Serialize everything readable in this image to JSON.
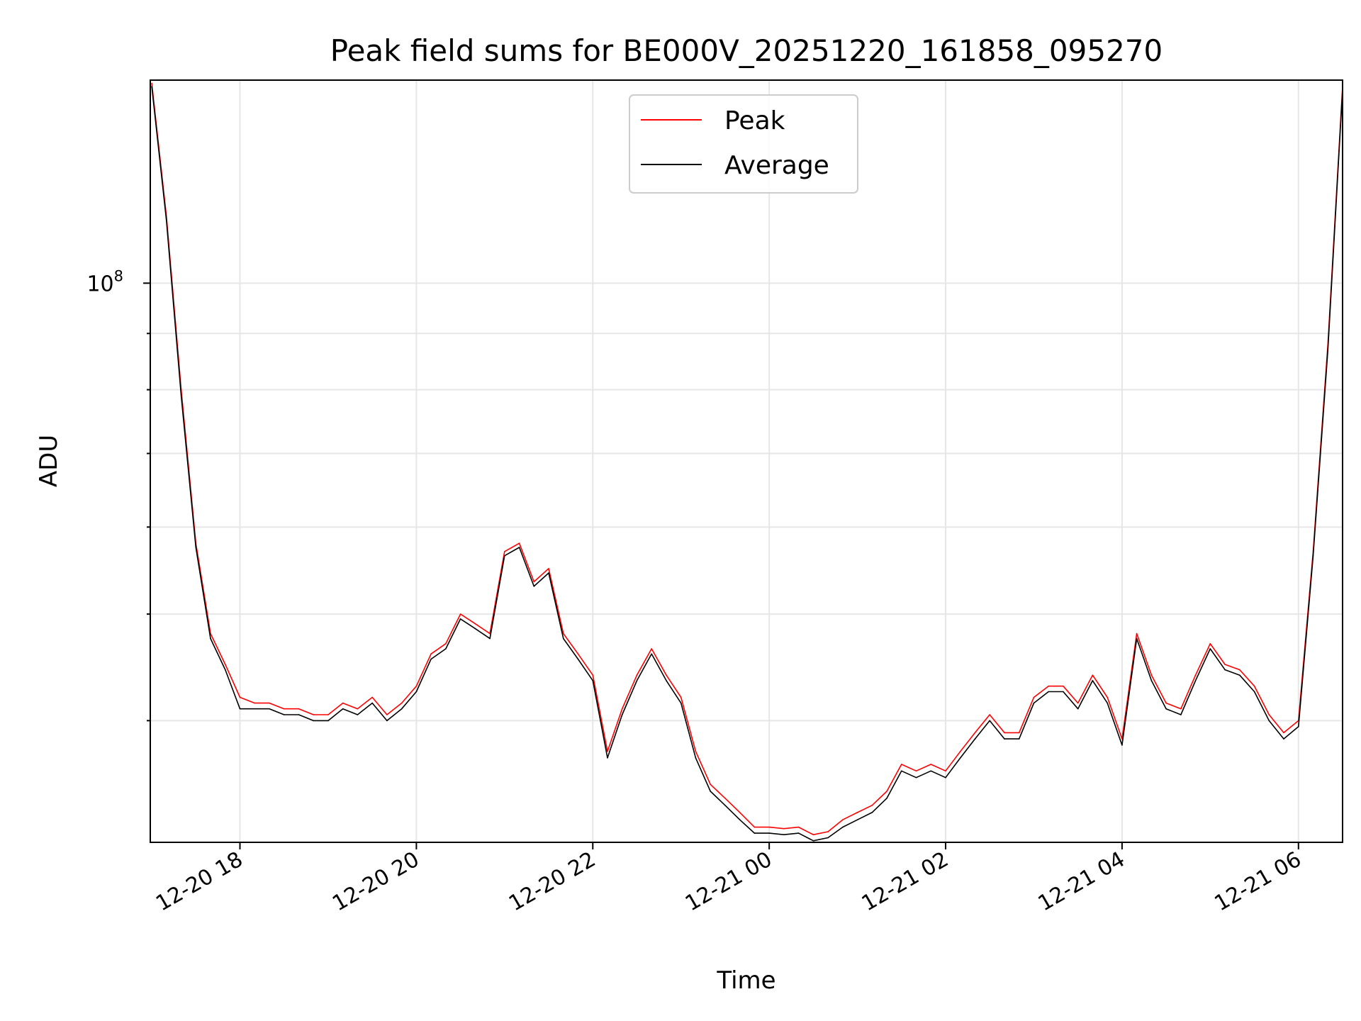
{
  "chart_data": {
    "type": "line",
    "title": "Peak field sums for BE000V_20251220_161858_095270",
    "xlabel": "Time",
    "ylabel": "ADU",
    "yscale": "log",
    "ylim": [
      31000000,
      153000000
    ],
    "xlim": [
      "12-20 16:59",
      "12-21 06:30"
    ],
    "x_ticks": [
      "12-20 18",
      "12-20 20",
      "12-20 22",
      "12-21 00",
      "12-21 02",
      "12-21 04",
      "12-21 06"
    ],
    "y_ticks": [
      {
        "value": 100000000,
        "mantissa": "10",
        "exponent": "8"
      }
    ],
    "grid": true,
    "legend_position": "upper-center",
    "colors": {
      "peak": "#ff0000",
      "average": "#000000"
    },
    "series": [
      {
        "name": "Peak",
        "color": "#ff0000",
        "x": [
          "12-20 17:00",
          "12-20 17:10",
          "12-20 17:20",
          "12-20 17:30",
          "12-20 17:40",
          "12-20 17:50",
          "12-20 18:00",
          "12-20 18:10",
          "12-20 18:20",
          "12-20 18:30",
          "12-20 18:40",
          "12-20 18:50",
          "12-20 19:00",
          "12-20 19:10",
          "12-20 19:20",
          "12-20 19:30",
          "12-20 19:40",
          "12-20 19:50",
          "12-20 20:00",
          "12-20 20:10",
          "12-20 20:20",
          "12-20 20:30",
          "12-20 20:40",
          "12-20 20:50",
          "12-20 21:00",
          "12-20 21:10",
          "12-20 21:20",
          "12-20 21:30",
          "12-20 21:40",
          "12-20 21:50",
          "12-20 22:00",
          "12-20 22:10",
          "12-20 22:20",
          "12-20 22:30",
          "12-20 22:40",
          "12-20 22:50",
          "12-20 23:00",
          "12-20 23:10",
          "12-20 23:20",
          "12-20 23:30",
          "12-20 23:40",
          "12-20 23:50",
          "12-21 00:00",
          "12-21 00:10",
          "12-21 00:20",
          "12-21 00:30",
          "12-21 00:40",
          "12-21 00:50",
          "12-21 01:00",
          "12-21 01:10",
          "12-21 01:20",
          "12-21 01:30",
          "12-21 01:40",
          "12-21 01:50",
          "12-21 02:00",
          "12-21 02:10",
          "12-21 02:20",
          "12-21 02:30",
          "12-21 02:40",
          "12-21 02:50",
          "12-21 03:00",
          "12-21 03:10",
          "12-21 03:20",
          "12-21 03:30",
          "12-21 03:40",
          "12-21 03:50",
          "12-21 04:00",
          "12-21 04:10",
          "12-21 04:20",
          "12-21 04:30",
          "12-21 04:40",
          "12-21 04:50",
          "12-21 05:00",
          "12-21 05:10",
          "12-21 05:20",
          "12-21 05:30",
          "12-21 05:40",
          "12-21 05:50",
          "12-21 06:00",
          "12-21 06:10",
          "12-21 06:20",
          "12-21 06:30"
        ],
        "values": [
          152000000,
          115000000,
          80000000,
          58000000,
          48000000,
          45000000,
          42000000,
          41500000,
          41500000,
          41000000,
          41000000,
          40500000,
          40500000,
          41500000,
          41000000,
          42000000,
          40500000,
          41500000,
          43000000,
          46000000,
          47000000,
          50000000,
          49000000,
          48000000,
          57000000,
          58000000,
          53500000,
          55000000,
          48000000,
          46000000,
          44000000,
          37500000,
          41000000,
          44000000,
          46500000,
          44000000,
          42000000,
          37500000,
          35000000,
          34000000,
          33000000,
          32000000,
          32000000,
          31900000,
          32000000,
          31500000,
          31700000,
          32500000,
          33000000,
          33500000,
          34500000,
          36500000,
          36000000,
          36500000,
          36000000,
          37500000,
          39000000,
          40500000,
          39000000,
          39000000,
          42000000,
          43000000,
          43000000,
          41500000,
          44000000,
          42000000,
          38500000,
          48000000,
          44000000,
          41500000,
          41000000,
          44000000,
          47000000,
          45000000,
          44500000,
          43000000,
          40500000,
          39000000,
          40000000,
          57000000,
          88000000,
          151000000
        ]
      },
      {
        "name": "Average",
        "color": "#000000",
        "x": [
          "12-20 17:00",
          "12-20 17:10",
          "12-20 17:20",
          "12-20 17:30",
          "12-20 17:40",
          "12-20 17:50",
          "12-20 18:00",
          "12-20 18:10",
          "12-20 18:20",
          "12-20 18:30",
          "12-20 18:40",
          "12-20 18:50",
          "12-20 19:00",
          "12-20 19:10",
          "12-20 19:20",
          "12-20 19:30",
          "12-20 19:40",
          "12-20 19:50",
          "12-20 20:00",
          "12-20 20:10",
          "12-20 20:20",
          "12-20 20:30",
          "12-20 20:40",
          "12-20 20:50",
          "12-20 21:00",
          "12-20 21:10",
          "12-20 21:20",
          "12-20 21:30",
          "12-20 21:40",
          "12-20 21:50",
          "12-20 22:00",
          "12-20 22:10",
          "12-20 22:20",
          "12-20 22:30",
          "12-20 22:40",
          "12-20 22:50",
          "12-20 23:00",
          "12-20 23:10",
          "12-20 23:20",
          "12-20 23:30",
          "12-20 23:40",
          "12-20 23:50",
          "12-21 00:00",
          "12-21 00:10",
          "12-21 00:20",
          "12-21 00:30",
          "12-21 00:40",
          "12-21 00:50",
          "12-21 01:00",
          "12-21 01:10",
          "12-21 01:20",
          "12-21 01:30",
          "12-21 01:40",
          "12-21 01:50",
          "12-21 02:00",
          "12-21 02:10",
          "12-21 02:20",
          "12-21 02:30",
          "12-21 02:40",
          "12-21 02:50",
          "12-21 03:00",
          "12-21 03:10",
          "12-21 03:20",
          "12-21 03:30",
          "12-21 03:40",
          "12-21 03:50",
          "12-21 04:00",
          "12-21 04:10",
          "12-21 04:20",
          "12-21 04:30",
          "12-21 04:40",
          "12-21 04:50",
          "12-21 05:00",
          "12-21 05:10",
          "12-21 05:20",
          "12-21 05:30",
          "12-21 05:40",
          "12-21 05:50",
          "12-21 06:00",
          "12-21 06:10",
          "12-21 06:20",
          "12-21 06:30"
        ],
        "values": [
          151000000,
          114000000,
          79000000,
          57500000,
          47500000,
          44500000,
          41000000,
          41000000,
          41000000,
          40500000,
          40500000,
          40000000,
          40000000,
          41000000,
          40500000,
          41500000,
          40000000,
          41000000,
          42500000,
          45500000,
          46500000,
          49500000,
          48500000,
          47500000,
          56500000,
          57500000,
          53000000,
          54500000,
          47500000,
          45500000,
          43500000,
          37000000,
          40500000,
          43500000,
          46000000,
          43500000,
          41500000,
          37000000,
          34500000,
          33500000,
          32500000,
          31600000,
          31600000,
          31500000,
          31600000,
          31100000,
          31300000,
          32000000,
          32500000,
          33000000,
          34000000,
          36000000,
          35500000,
          36000000,
          35500000,
          37000000,
          38500000,
          40000000,
          38500000,
          38500000,
          41500000,
          42500000,
          42500000,
          41000000,
          43500000,
          41500000,
          38000000,
          47500000,
          43500000,
          41000000,
          40500000,
          43500000,
          46500000,
          44500000,
          44000000,
          42500000,
          40000000,
          38500000,
          39500000,
          56500000,
          87000000,
          150000000
        ]
      }
    ]
  }
}
